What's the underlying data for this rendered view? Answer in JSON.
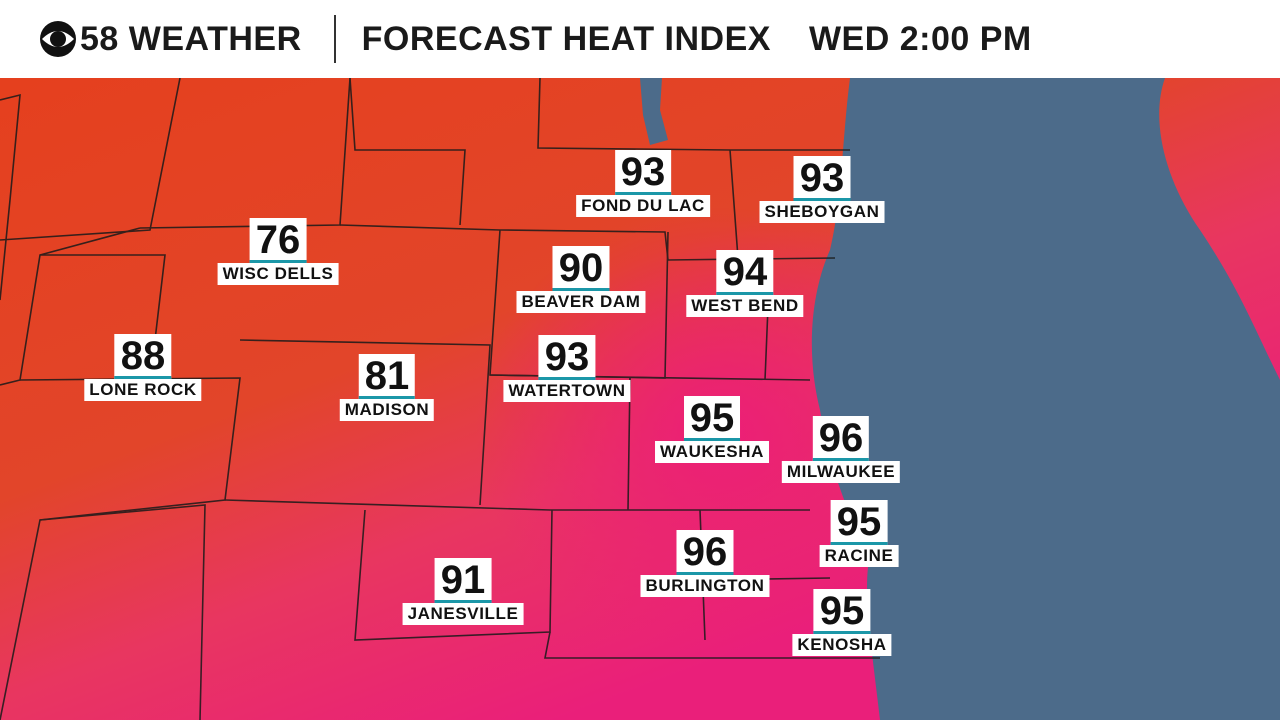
{
  "header": {
    "brand": "58 WEATHER",
    "title": "FORECAST HEAT INDEX",
    "time": "WED 2:00 PM"
  },
  "cities": [
    {
      "name": "FOND DU LAC",
      "value": "93"
    },
    {
      "name": "SHEBOYGAN",
      "value": "93"
    },
    {
      "name": "WISC DELLS",
      "value": "76"
    },
    {
      "name": "BEAVER DAM",
      "value": "90"
    },
    {
      "name": "WEST BEND",
      "value": "94"
    },
    {
      "name": "LONE ROCK",
      "value": "88"
    },
    {
      "name": "MADISON",
      "value": "81"
    },
    {
      "name": "WATERTOWN",
      "value": "93"
    },
    {
      "name": "WAUKESHA",
      "value": "95"
    },
    {
      "name": "MILWAUKEE",
      "value": "96"
    },
    {
      "name": "RACINE",
      "value": "95"
    },
    {
      "name": "BURLINGTON",
      "value": "96"
    },
    {
      "name": "JANESVILLE",
      "value": "91"
    },
    {
      "name": "KENOSHA",
      "value": "95"
    }
  ]
}
